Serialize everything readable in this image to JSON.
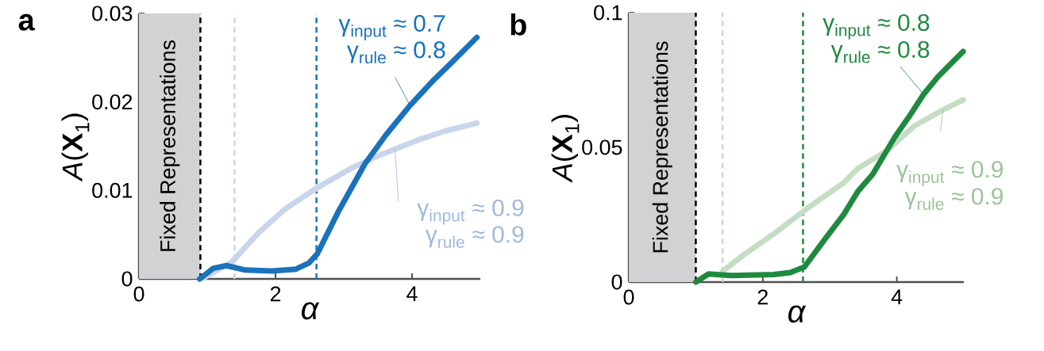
{
  "chart_data": [
    {
      "type": "line",
      "title": "a",
      "xlabel": "α",
      "ylabel": "*A*(**X**$_{1}$)",
      "xlim": [
        0,
        5
      ],
      "ylim": [
        0,
        0.03
      ],
      "xticks": [
        0,
        2,
        4
      ],
      "yticks": [
        0,
        0.01,
        0.02,
        0.03
      ],
      "grid": false,
      "marker": "none",
      "line_style": "solid",
      "series": [
        {
          "color": "#c9d5ec",
          "x": [
            0.97,
            1.36,
            1.75,
            2.14,
            2.61,
            3.11,
            3.5,
            4.09,
            4.48,
            4.95
          ],
          "values": [
            0.0002,
            0.0019,
            0.0052,
            0.0079,
            0.0103,
            0.0125,
            0.0139,
            0.0157,
            0.0167,
            0.0176
          ]
        },
        {
          "color": "#1a72bb",
          "x": [
            0.89,
            1.09,
            1.28,
            1.56,
            1.95,
            2.3,
            2.49,
            2.61,
            2.92,
            3.31,
            3.62,
            3.97,
            4.32,
            4.6,
            4.95
          ],
          "values": [
            0,
            0.0012,
            0.0015,
            0.001,
            0.0009,
            0.0011,
            0.0018,
            0.0028,
            0.0076,
            0.013,
            0.0163,
            0.0196,
            0.0225,
            0.0246,
            0.0273
          ]
        }
      ],
      "bands": [
        {
          "axis": "x",
          "from": 0,
          "to": 0.9,
          "label": "Fixed Representations",
          "color": "#d2d2d4"
        }
      ],
      "ref_lines": [
        {
          "axis": "x",
          "value": 0.9,
          "color": "#000000",
          "line_style": "dashed"
        },
        {
          "axis": "x",
          "value": 1.4,
          "color": "#c9d5ec",
          "line_style": "dashed"
        },
        {
          "axis": "x",
          "value": 2.6,
          "color": "#1a72bb",
          "line_style": "dashed"
        }
      ],
      "annotations": [
        "γ$_{input}$ ≈ 0.7",
        {
          "text": "γ$_{rule}$ ≈ 0.8",
          "x": 3.97,
          "y": 0.0196
        },
        {
          "text": "γ$_{input}$ ≈ 0.9",
          "x": 3.75,
          "y": 0.0147
        },
        "γ$_{rule}$ ≈ 0.9"
      ]
    },
    {
      "type": "line",
      "title": "b",
      "xlabel": "α",
      "ylabel": "*A*(**X**$_{1}$)",
      "xlim": [
        0,
        5
      ],
      "ylim": [
        0,
        0.1
      ],
      "xticks": [
        0,
        2,
        4
      ],
      "yticks": [
        0,
        0.05,
        0.1
      ],
      "grid": false,
      "marker": "none",
      "line_style": "solid",
      "series": [
        {
          "color": "#c6ddc5",
          "x": [
            1.4,
            1.73,
            2.16,
            2.66,
            3.21,
            3.42,
            3.84,
            4.27,
            4.69,
            4.99
          ],
          "values": [
            0.004,
            0.0104,
            0.0178,
            0.0273,
            0.0369,
            0.0422,
            0.0485,
            0.0581,
            0.0639,
            0.0676
          ]
        },
        {
          "color": "#1f8a3f",
          "x": [
            1.0,
            1.19,
            1.53,
            2.16,
            2.41,
            2.62,
            2.92,
            3.21,
            3.42,
            3.64,
            3.97,
            4.18,
            4.4,
            4.61,
            4.82,
            4.99
          ],
          "values": [
            0,
            0.003,
            0.0024,
            0.0028,
            0.0035,
            0.0056,
            0.0157,
            0.0252,
            0.0337,
            0.04,
            0.0538,
            0.0613,
            0.0697,
            0.0761,
            0.0814,
            0.0856
          ]
        }
      ],
      "bands": [
        {
          "axis": "x",
          "from": 0,
          "to": 1,
          "label": "Fixed Representations",
          "color": "#d2d2d4"
        }
      ],
      "ref_lines": [
        {
          "axis": "x",
          "value": 1,
          "color": "#000000",
          "line_style": "dashed"
        },
        {
          "axis": "x",
          "value": 1.4,
          "color": "#c6ddc5",
          "line_style": "dashed"
        },
        {
          "axis": "x",
          "value": 2.6,
          "color": "#1f8a3f",
          "line_style": "dashed"
        }
      ],
      "annotations": [
        "γ$_{input}$ ≈ 0.8",
        {
          "text": "γ$_{rule}$ ≈ 0.8",
          "x": 4.4,
          "y": 0.0697
        },
        {
          "text": "γ$_{input}$ ≈ 0.9",
          "x": 4.69,
          "y": 0.0639
        },
        "γ$_{rule}$ ≈ 0.9"
      ]
    }
  ]
}
